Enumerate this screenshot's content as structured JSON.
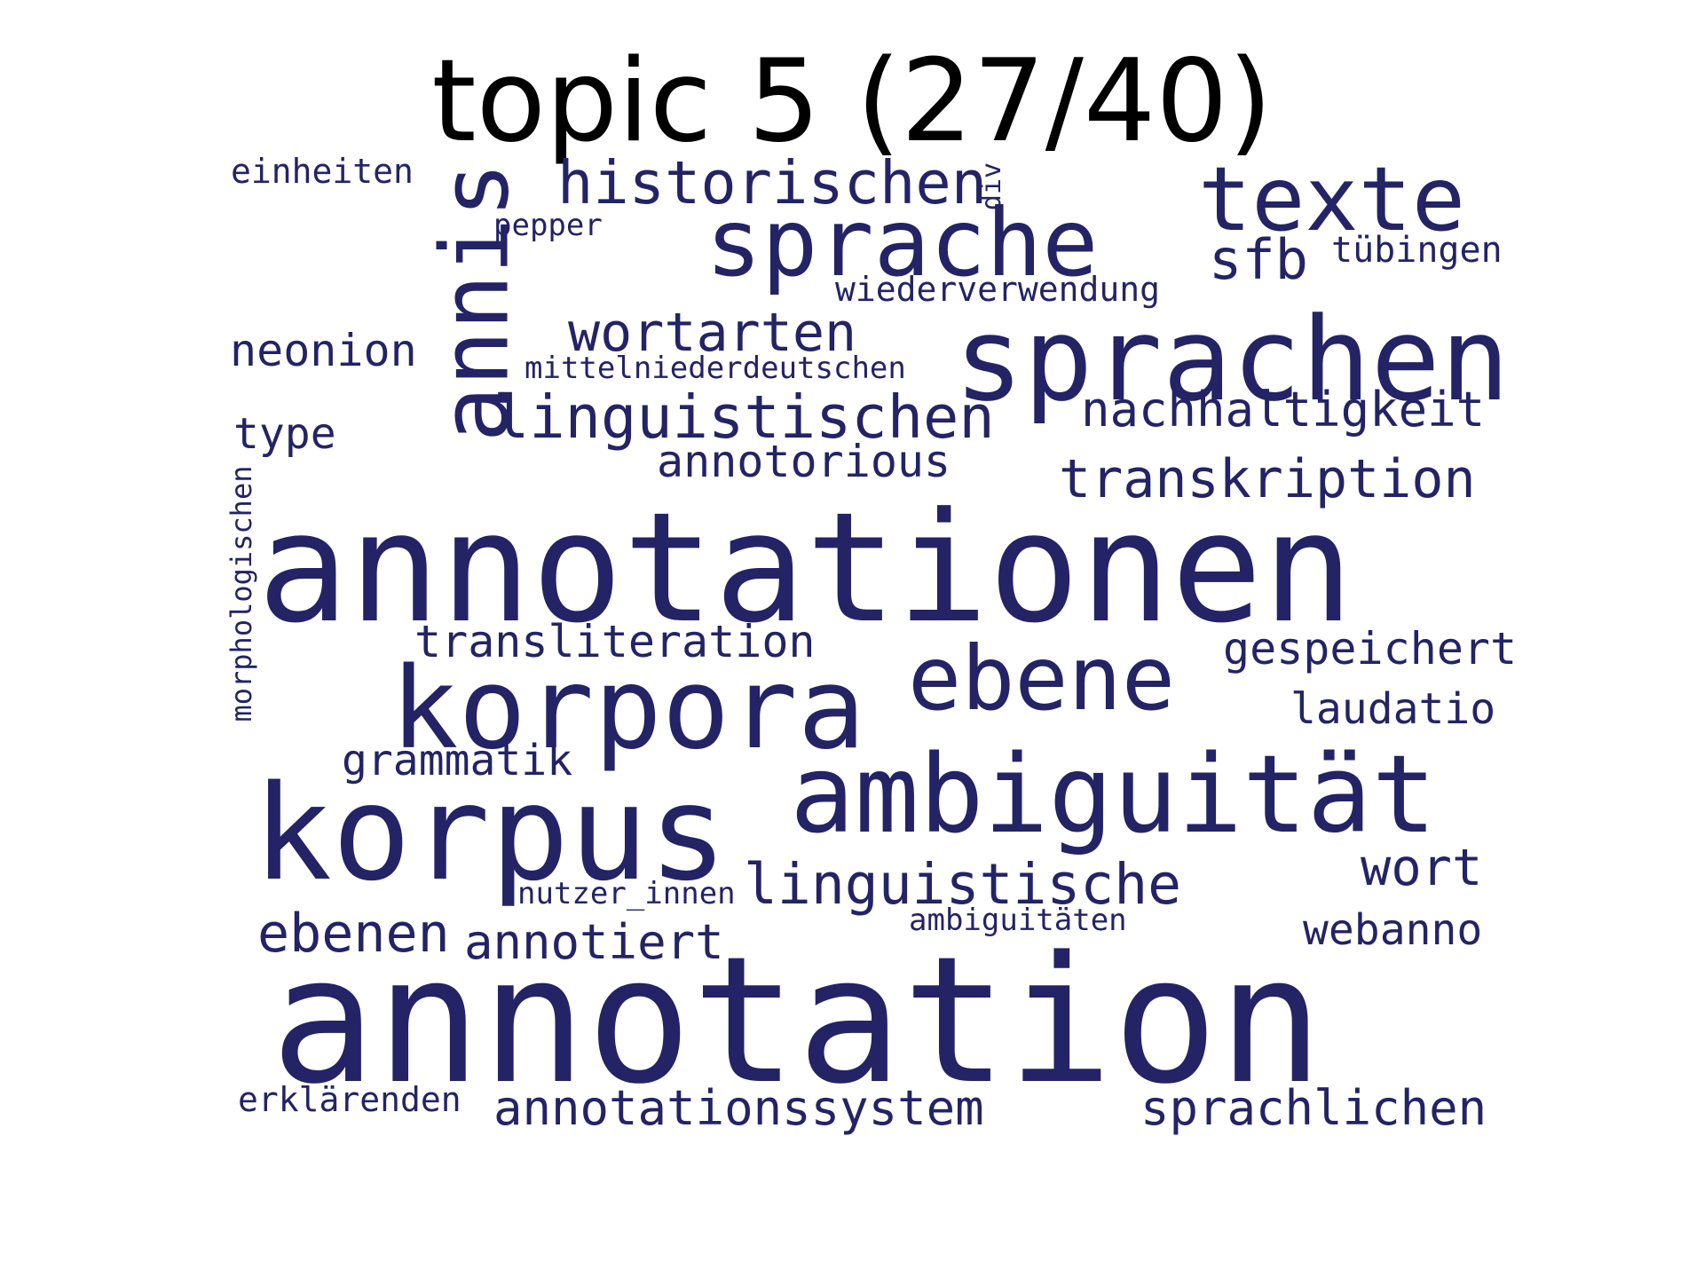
{
  "title": "topic 5 (27/40)",
  "text_color": "#232366",
  "words": {
    "annotation": "annotation",
    "annotationen": "annotationen",
    "korpus": "korpus",
    "korpora": "korpora",
    "ambiguitaet": "ambiguität",
    "sprachen": "sprachen",
    "sprache": "sprache",
    "annis": "annis",
    "texte": "texte",
    "ebene": "ebene",
    "historischen": "historischen",
    "linguistischen": "linguistischen",
    "linguistische": "linguistische",
    "wortarten": "wortarten",
    "transkription": "transkription",
    "ebenen": "ebenen",
    "sfb": "sfb",
    "nachhaltigkeit": "nachhaltigkeit",
    "annotationssystem": "annotationssystem",
    "sprachlichen": "sprachlichen",
    "annotiert": "annotiert",
    "transliteration": "transliteration",
    "gespeichert": "gespeichert",
    "annotorious": "annotorious",
    "wort": "wort",
    "neonion": "neonion",
    "grammatik": "grammatik",
    "laudatio": "laudatio",
    "webanno": "webanno",
    "type": "type",
    "tuebingen": "tübingen",
    "wiederverwendung": "wiederverwendung",
    "einheiten": "einheiten",
    "erklaerenden": "erklärenden",
    "pepper": "pepper",
    "mittelniederdeutschen": "mittelniederdeutschen",
    "nutzer_innen": "nutzer_innen",
    "ambiguitaeten": "ambiguitäten",
    "morphologischen": "morphologischen",
    "div": "div"
  }
}
